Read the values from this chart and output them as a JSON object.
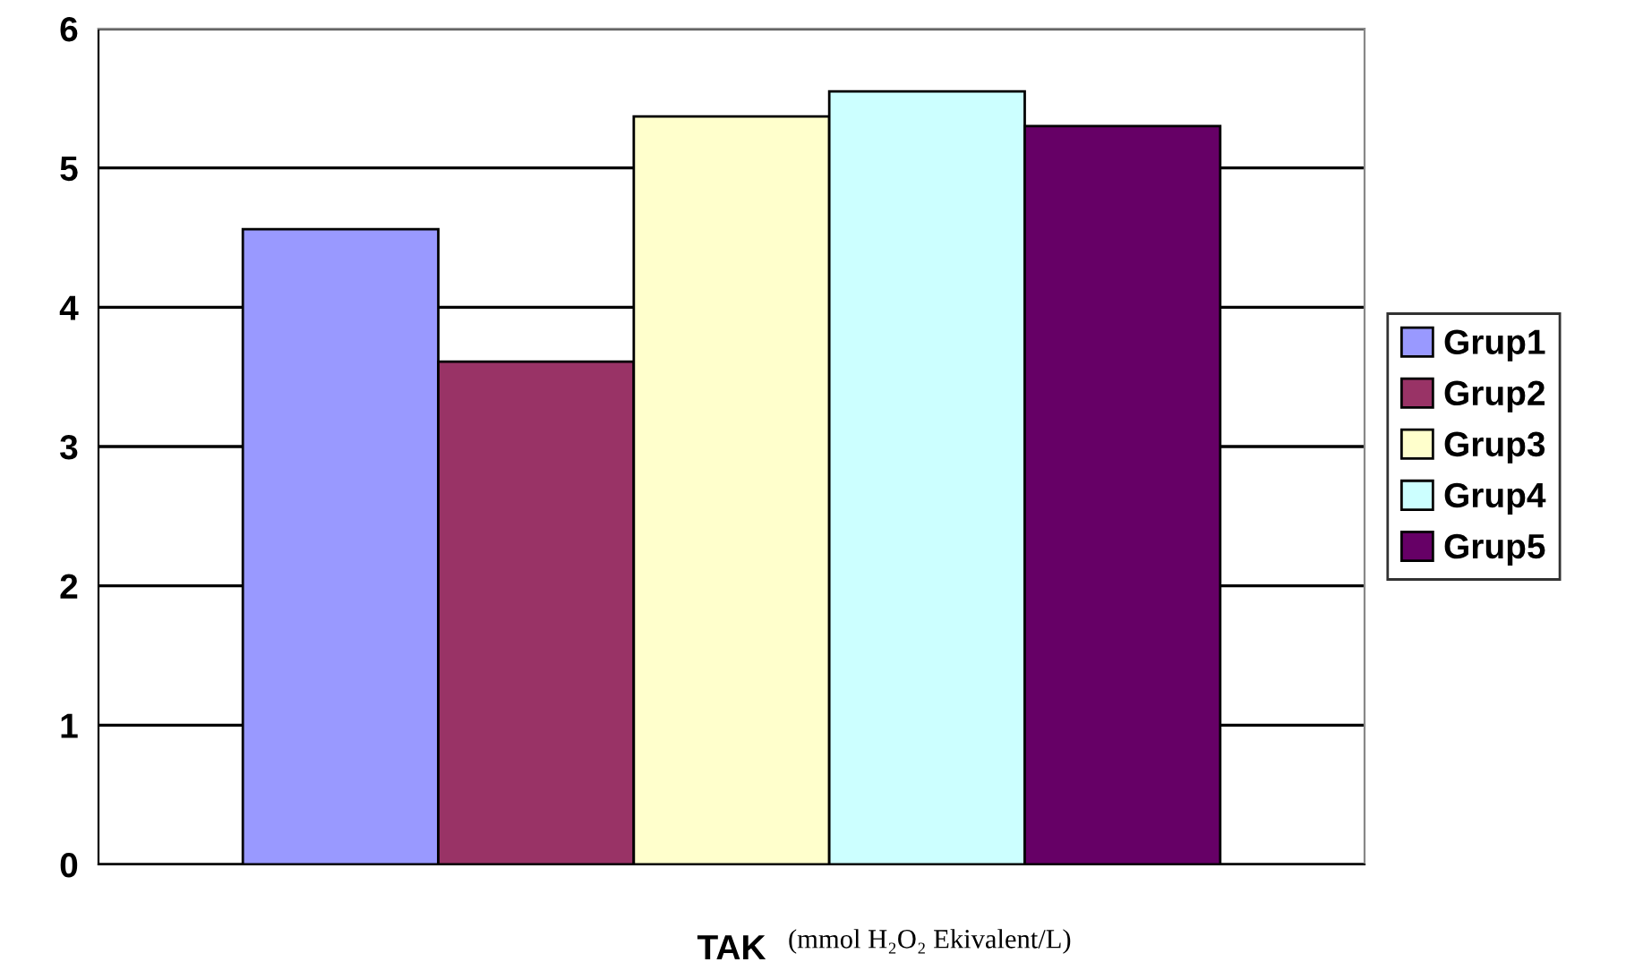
{
  "chart_data": {
    "type": "bar",
    "categories": [
      "TAK"
    ],
    "series": [
      {
        "name": "Grup1",
        "color": "#9999ff",
        "values": [
          4.56
        ]
      },
      {
        "name": "Grup2",
        "color": "#993366",
        "values": [
          3.61
        ]
      },
      {
        "name": "Grup3",
        "color": "#ffffcc",
        "values": [
          5.37
        ]
      },
      {
        "name": "Grup4",
        "color": "#ccffff",
        "values": [
          5.55
        ]
      },
      {
        "name": "Grup5",
        "color": "#660066",
        "values": [
          5.3
        ]
      }
    ],
    "ylim": [
      0,
      6
    ],
    "yticks": [
      0,
      1,
      2,
      3,
      4,
      5,
      6
    ],
    "grid": "y",
    "legend": "right",
    "annotations": [
      "(mmol H₂O₂ Ekivalent/L)"
    ]
  }
}
